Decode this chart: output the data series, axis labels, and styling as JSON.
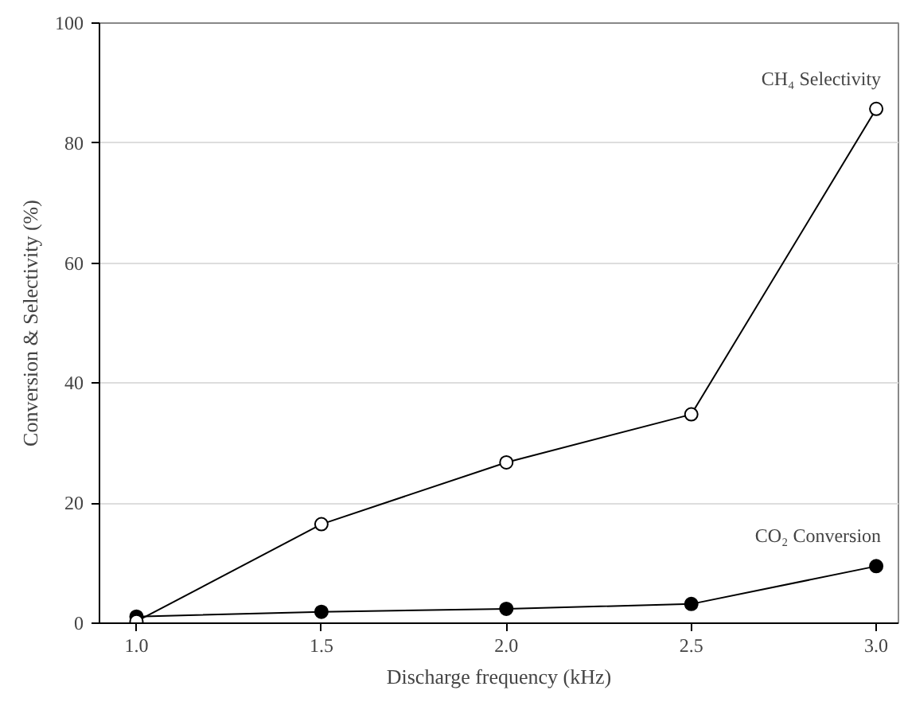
{
  "chart_data": {
    "type": "line",
    "xlabel": "Discharge frequency (kHz)",
    "ylabel": "Conversion & Selectivity (%)",
    "x": [
      1.0,
      1.5,
      2.0,
      2.5,
      3.0
    ],
    "series": [
      {
        "name": "CH₄ Selectivity",
        "color": "#000000",
        "values": [
          0.3,
          16.5,
          26.8,
          34.8,
          85.7
        ],
        "marker": "circle"
      },
      {
        "name": "CO₂ Conversion",
        "color": "#000000",
        "values": [
          1.1,
          1.9,
          2.4,
          3.2,
          9.5
        ],
        "marker": "circle"
      }
    ],
    "xlim": [
      0.9,
      3.06
    ],
    "ylim": [
      0,
      100
    ],
    "xticks": [
      {
        "value": 1.0,
        "label": "1.0"
      },
      {
        "value": 1.5,
        "label": "1.5"
      },
      {
        "value": 2.0,
        "label": "2.0"
      },
      {
        "value": 2.5,
        "label": "2.5"
      },
      {
        "value": 3.0,
        "label": "3.0"
      }
    ],
    "yticks": [
      0,
      20,
      40,
      60,
      80,
      100
    ],
    "grid": "y",
    "legend": false,
    "line_style": "solid"
  }
}
